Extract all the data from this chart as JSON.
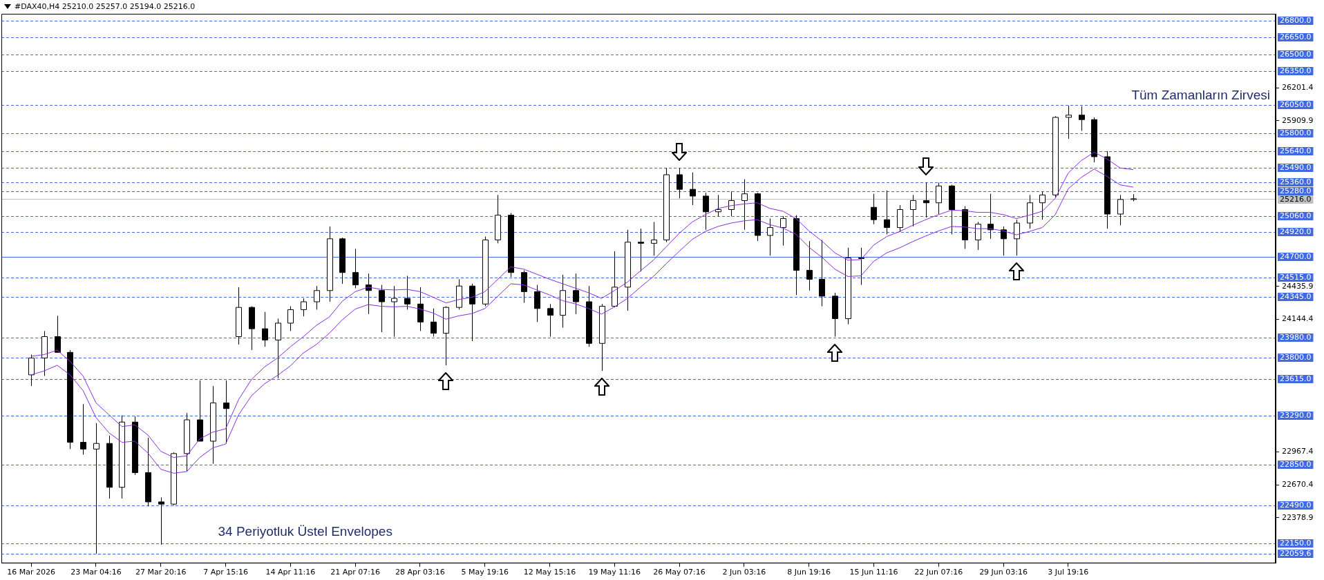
{
  "chart_data": {
    "type": "candlestick",
    "title": "#DAX40,H4 25210.0 25257.0 25194.0 25216.0",
    "categories": [
      "16 Mar 2026",
      null,
      null,
      null,
      null,
      "23 Mar 04:16",
      null,
      null,
      null,
      null,
      "27 Mar 20:16",
      null,
      null,
      null,
      null,
      "7 Apr 15:16",
      null,
      null,
      null,
      null,
      "14 Apr 11:16",
      null,
      null,
      null,
      null,
      "21 Apr 07:16",
      null,
      null,
      null,
      null,
      "28 Apr 03:16",
      null,
      null,
      null,
      null,
      "5 May 19:16",
      null,
      null,
      null,
      null,
      "12 May 15:16",
      null,
      null,
      null,
      null,
      "19 May 11:16",
      null,
      null,
      null,
      null,
      "26 May 07:16",
      null,
      null,
      null,
      null,
      "2 Jun 03:16",
      null,
      null,
      null,
      null,
      "8 Jun 19:16",
      null,
      null,
      null,
      null,
      "15 Jun 11:16",
      null,
      null,
      null,
      null,
      "22 Jun 07:16",
      null,
      null,
      null,
      null,
      "29 Jun 03:16",
      null,
      null,
      null,
      null,
      "3 Jul 19:16",
      null,
      null,
      null,
      null,
      null
    ],
    "ohlc": [
      [
        23650,
        23830,
        23550,
        23800
      ],
      [
        23800,
        24040,
        23640,
        23990
      ],
      [
        23990,
        24175,
        23850,
        23850
      ],
      [
        23850,
        23870,
        22990,
        23050
      ],
      [
        23050,
        23390,
        22940,
        22990
      ],
      [
        22990,
        23220,
        22060,
        23040
      ],
      [
        23040,
        23110,
        22550,
        22650
      ],
      [
        22650,
        23290,
        22550,
        23230
      ],
      [
        23230,
        23280,
        22760,
        22780
      ],
      [
        22780,
        23090,
        22480,
        22520
      ],
      [
        22520,
        22560,
        22140,
        22500
      ],
      [
        22500,
        22960,
        22490,
        22950
      ],
      [
        22950,
        23310,
        22790,
        23250
      ],
      [
        23250,
        23600,
        23060,
        23060
      ],
      [
        23060,
        23550,
        22860,
        23400
      ],
      [
        23400,
        23600,
        23040,
        23350
      ],
      [
        23990,
        24430,
        23920,
        24250
      ],
      [
        24250,
        24260,
        23870,
        24060
      ],
      [
        24060,
        24210,
        23900,
        23960
      ],
      [
        23960,
        24150,
        23620,
        24110
      ],
      [
        24110,
        24260,
        24040,
        24230
      ],
      [
        24230,
        24330,
        24170,
        24300
      ],
      [
        24300,
        24440,
        24230,
        24400
      ],
      [
        24400,
        24970,
        24300,
        24860
      ],
      [
        24860,
        24870,
        24460,
        24560
      ],
      [
        24560,
        24770,
        24420,
        24450
      ],
      [
        24450,
        24550,
        24190,
        24400
      ],
      [
        24400,
        24450,
        24030,
        24300
      ],
      [
        24300,
        24440,
        23990,
        24330
      ],
      [
        24330,
        24530,
        24230,
        24280
      ],
      [
        24280,
        24430,
        24040,
        24120
      ],
      [
        24120,
        24240,
        23990,
        24020
      ],
      [
        24020,
        24260,
        23735,
        24250
      ],
      [
        24250,
        24500,
        24230,
        24440
      ],
      [
        24440,
        24460,
        23950,
        24280
      ],
      [
        24280,
        24880,
        24260,
        24850
      ],
      [
        24850,
        25250,
        24820,
        25070
      ],
      [
        25070,
        25090,
        24520,
        24560
      ],
      [
        24560,
        24580,
        24290,
        24390
      ],
      [
        24390,
        24450,
        24120,
        24240
      ],
      [
        24240,
        24280,
        23990,
        24180
      ],
      [
        24180,
        24540,
        24070,
        24400
      ],
      [
        24400,
        24550,
        24190,
        24300
      ],
      [
        24300,
        24440,
        23900,
        23930
      ],
      [
        23930,
        24280,
        23685,
        24260
      ],
      [
        24260,
        24750,
        24250,
        24430
      ],
      [
        24430,
        24940,
        24220,
        24830
      ],
      [
        24830,
        24950,
        24570,
        24820
      ],
      [
        24820,
        25010,
        24710,
        24850
      ],
      [
        24850,
        25490,
        24830,
        25430
      ],
      [
        25430,
        25490,
        25220,
        25300
      ],
      [
        25300,
        25450,
        25160,
        25240
      ],
      [
        25240,
        25270,
        24940,
        25100
      ],
      [
        25100,
        25250,
        25060,
        25120
      ],
      [
        25120,
        25280,
        25060,
        25200
      ],
      [
        25200,
        25390,
        24940,
        25260
      ],
      [
        25260,
        25270,
        24840,
        24890
      ],
      [
        24890,
        25040,
        24710,
        24960
      ],
      [
        24960,
        25060,
        24800,
        25040
      ],
      [
        25040,
        25070,
        24360,
        24580
      ],
      [
        24580,
        24840,
        24400,
        24500
      ],
      [
        24500,
        24850,
        24260,
        24350
      ],
      [
        24350,
        24380,
        23990,
        24150
      ],
      [
        24150,
        24780,
        24100,
        24690
      ],
      [
        24690,
        24780,
        24450,
        24690
      ],
      [
        25140,
        25260,
        24990,
        25030
      ],
      [
        25030,
        25290,
        24900,
        24960
      ],
      [
        24960,
        25160,
        24920,
        25120
      ],
      [
        25120,
        25250,
        24970,
        25200
      ],
      [
        25200,
        25360,
        25050,
        25180
      ],
      [
        25180,
        25360,
        25080,
        25330
      ],
      [
        25330,
        25340,
        24900,
        25120
      ],
      [
        25120,
        25150,
        24770,
        24850
      ],
      [
        24850,
        25010,
        24760,
        24990
      ],
      [
        24990,
        25260,
        24860,
        24940
      ],
      [
        24940,
        24970,
        24710,
        24860
      ],
      [
        24860,
        25030,
        24710,
        25000
      ],
      [
        25000,
        25250,
        24950,
        25180
      ],
      [
        25180,
        25280,
        25030,
        25250
      ],
      [
        25250,
        25950,
        25230,
        25940
      ],
      [
        25940,
        26045,
        25750,
        25960
      ],
      [
        25960,
        26040,
        25820,
        25920
      ],
      [
        25920,
        25940,
        25540,
        25590
      ],
      [
        25590,
        25640,
        24950,
        25080
      ],
      [
        25080,
        25250,
        24980,
        25210
      ],
      [
        25210,
        25257,
        25194,
        25216
      ]
    ],
    "series": [
      {
        "type": "line",
        "color": "#8a2be2",
        "values": [
          23815,
          23830,
          23870,
          23770,
          23640,
          23400,
          23295,
          23190,
          23205,
          23115,
          22970,
          22915,
          22930,
          23080,
          23140,
          23170,
          23430,
          23610,
          23720,
          23800,
          23900,
          23990,
          24090,
          24165,
          24305,
          24390,
          24430,
          24410,
          24405,
          24410,
          24390,
          24340,
          24290,
          24320,
          24340,
          24390,
          24500,
          24610,
          24590,
          24545,
          24500,
          24460,
          24420,
          24380,
          24330,
          24400,
          24475,
          24575,
          24670,
          24790,
          24910,
          25010,
          25075,
          25130,
          25155,
          25170,
          25180,
          25130,
          25105,
          25040,
          24930,
          24840,
          24735,
          24670,
          24675,
          24805,
          24880,
          24925,
          24980,
          25030,
          25075,
          25115,
          25110,
          25095,
          25095,
          25075,
          25040,
          25070,
          25105,
          25220,
          25445,
          25555,
          25630,
          25570,
          25490,
          25475
        ]
      },
      {
        "type": "line",
        "color": "#8a2be2",
        "values": [
          23650,
          23685,
          23735,
          23650,
          23510,
          23270,
          23135,
          23050,
          23060,
          22955,
          22810,
          22775,
          22790,
          22915,
          23000,
          23035,
          23295,
          23465,
          23570,
          23645,
          23730,
          23845,
          23920,
          24020,
          24140,
          24235,
          24275,
          24260,
          24255,
          24260,
          24235,
          24200,
          24145,
          24175,
          24195,
          24240,
          24350,
          24460,
          24450,
          24405,
          24360,
          24310,
          24280,
          24240,
          24190,
          24255,
          24330,
          24430,
          24525,
          24640,
          24750,
          24855,
          24925,
          24970,
          25000,
          25020,
          25030,
          24985,
          24955,
          24900,
          24785,
          24695,
          24590,
          24525,
          24530,
          24660,
          24735,
          24780,
          24835,
          24885,
          24930,
          24970,
          24965,
          24950,
          24950,
          24930,
          24895,
          24925,
          24960,
          25075,
          25305,
          25405,
          25480,
          25415,
          25340,
          25320
        ]
      }
    ],
    "ylim": [
      21974,
      26861
    ],
    "yticks": [
      22378.9,
      22670.4,
      22967.4,
      24144.4,
      24435.9,
      25909.9,
      26201.4
    ],
    "ref_lines": [
      {
        "axis": "y",
        "value": 26800,
        "label": "26800.0",
        "color": "#4169e1",
        "line_style": "dashed"
      },
      {
        "axis": "y",
        "value": 26650,
        "label": "26650.0",
        "color": "#4169e1",
        "line_style": "dashed"
      },
      {
        "axis": "y",
        "value": 26500,
        "label": "26500.0",
        "color": "#4169e1",
        "line_style": "dashed"
      },
      {
        "axis": "y",
        "value": 26350,
        "label": "26350.0",
        "color": "#4169e1",
        "line_style": "dashed"
      },
      {
        "axis": "y",
        "value": 26050,
        "label": "26050.0",
        "color": "#4169e1",
        "line_style": "dashed"
      },
      {
        "axis": "y",
        "value": 25800,
        "label": "25800.0",
        "color": "#4169e1",
        "line_style": "dashed"
      },
      {
        "axis": "y",
        "value": 25640,
        "label": "25640.0",
        "color": "#4169e1",
        "line_style": "dashed"
      },
      {
        "axis": "y",
        "value": 25490,
        "label": "25490.0",
        "color": "#4169e1",
        "line_style": "dashed"
      },
      {
        "axis": "y",
        "value": 25360,
        "label": "25360.0",
        "color": "#4169e1",
        "line_style": "dashed"
      },
      {
        "axis": "y",
        "value": 25280,
        "label": "25280.0",
        "color": "#4169e1",
        "line_style": "dashed"
      },
      {
        "axis": "y",
        "value": 25216,
        "label": "25216.0",
        "color": "#c0c0c0",
        "line_style": "solid"
      },
      {
        "axis": "y",
        "value": 25060,
        "label": "25060.0",
        "color": "#4169e1",
        "line_style": "dashed"
      },
      {
        "axis": "y",
        "value": 24920,
        "label": "24920.0",
        "color": "#4169e1",
        "line_style": "dashed"
      },
      {
        "axis": "y",
        "value": 24700,
        "label": "24700.0",
        "color": "#4169e1",
        "line_style": "solid"
      },
      {
        "axis": "y",
        "value": 24515,
        "label": "24515.0",
        "color": "#4169e1",
        "line_style": "dashed"
      },
      {
        "axis": "y",
        "value": 24345,
        "label": "24345.0",
        "color": "#4169e1",
        "line_style": "dashed"
      },
      {
        "axis": "y",
        "value": 23980,
        "label": "23980.0",
        "color": "#4169e1",
        "line_style": "dashed"
      },
      {
        "axis": "y",
        "value": 23800,
        "label": "23800.0",
        "color": "#4169e1",
        "line_style": "dashed"
      },
      {
        "axis": "y",
        "value": 23615,
        "label": "23615.0",
        "color": "#4169e1",
        "line_style": "dashed"
      },
      {
        "axis": "y",
        "value": 23290,
        "label": "23290.0",
        "color": "#4169e1",
        "line_style": "dashed"
      },
      {
        "axis": "y",
        "value": 22850,
        "label": "22850.0",
        "color": "#4169e1",
        "line_style": "dashed"
      },
      {
        "axis": "y",
        "value": 22490,
        "label": "22490.0",
        "color": "#4169e1",
        "line_style": "dashed"
      },
      {
        "axis": "y",
        "value": 22150,
        "label": "22150.0",
        "color": "#4169e1",
        "line_style": "dashed"
      },
      {
        "axis": "y",
        "value": 22059.6,
        "label": "22059.6",
        "color": "#4169e1",
        "line_style": "dashed"
      }
    ],
    "annotations": [
      {
        "text": "Tüm Zamanların Zirvesi",
        "y": 26050
      },
      "34 Periyotluk Üstel Envelopes"
    ]
  }
}
